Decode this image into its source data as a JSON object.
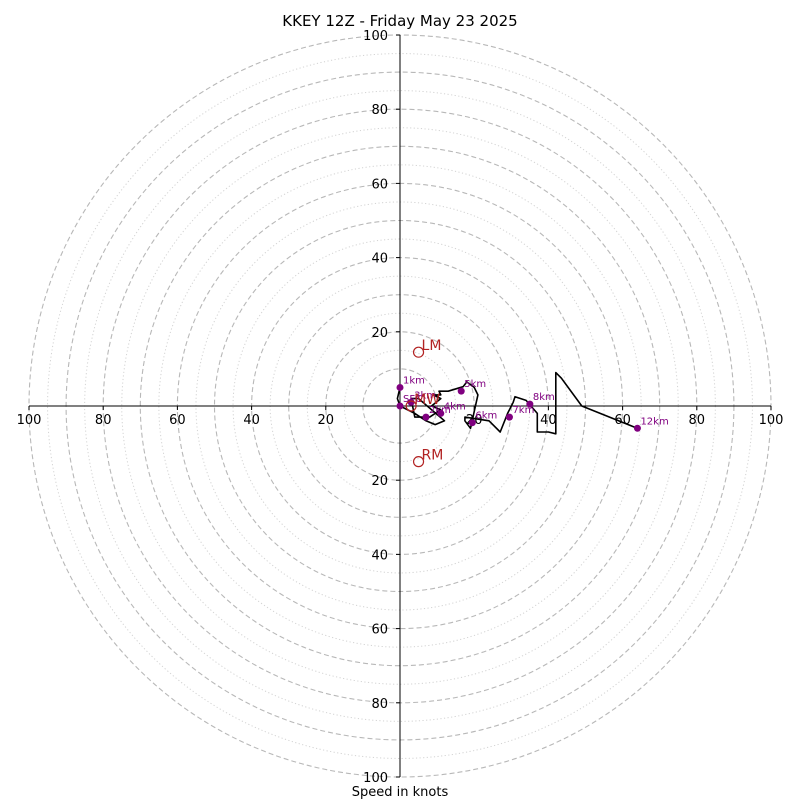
{
  "chart_data": {
    "type": "line",
    "subtype": "hodograph",
    "title": "KKEY 12Z - Friday May 23 2025",
    "xlabel": "Speed in knots",
    "ylabel": "",
    "xlim": [
      -100,
      100
    ],
    "ylim": [
      -100,
      100
    ],
    "ring_radii_dashed": [
      10,
      20,
      30,
      40,
      50,
      60,
      70,
      80,
      90,
      100
    ],
    "ring_radii_dotted": [
      15,
      25,
      35,
      45,
      55,
      65,
      75,
      85,
      95
    ],
    "tick_values": [
      20,
      40,
      60,
      80,
      100
    ],
    "x_tick_labels": [
      "100",
      "80",
      "60",
      "40",
      "20",
      "20",
      "40",
      "60",
      "80",
      "100"
    ],
    "y_tick_labels": [
      "100",
      "80",
      "60",
      "40",
      "20",
      "20",
      "40",
      "60",
      "80",
      "100"
    ],
    "grid": true,
    "hodograph_trace": {
      "x": [
        0,
        -0.7,
        0,
        4,
        7,
        9.5,
        12,
        5,
        3,
        4,
        8,
        11,
        8.5,
        11,
        9,
        11,
        10.5,
        13,
        17,
        18,
        20,
        21,
        19,
        17.5,
        17.5,
        24,
        27,
        29,
        30.5,
        31,
        34,
        37,
        37,
        40,
        42,
        42,
        43.5,
        49,
        64
      ],
      "y": [
        5,
        2,
        0,
        -2,
        -4,
        -5,
        -4,
        2,
        2,
        -3,
        -3,
        -1,
        0,
        2,
        3,
        3,
        4,
        4,
        5.2,
        6.5,
        5,
        3,
        -6,
        -4,
        -3,
        -4,
        -7,
        -2,
        1,
        2.5,
        1.5,
        -2,
        -7,
        -7,
        -7.5,
        9,
        7.5,
        0,
        -6
      ],
      "color": "#000000"
    },
    "height_markers": [
      {
        "label": "1km",
        "x": 0,
        "y": 5
      },
      {
        "label": "2km",
        "x": 7,
        "y": -3
      },
      {
        "label": "3km",
        "x": 3,
        "y": 1
      },
      {
        "label": "4km",
        "x": 11,
        "y": -2
      },
      {
        "label": "5km",
        "x": 16.5,
        "y": 4
      },
      {
        "label": "6km",
        "x": 19.5,
        "y": -4.5
      },
      {
        "label": "7km",
        "x": 29.5,
        "y": -3
      },
      {
        "label": "8km",
        "x": 35,
        "y": 0.5
      },
      {
        "label": "12km",
        "x": 64,
        "y": -6
      },
      {
        "label": "SFC",
        "x": 0,
        "y": 0
      }
    ],
    "marker_color": "#800080",
    "storm_motion": [
      {
        "label": "LM",
        "x": 5,
        "y": 14.5
      },
      {
        "label": "MW",
        "x": 3,
        "y": 0
      },
      {
        "label": "RM",
        "x": 5,
        "y": -15
      }
    ],
    "storm_motion_color": "#b22222"
  }
}
